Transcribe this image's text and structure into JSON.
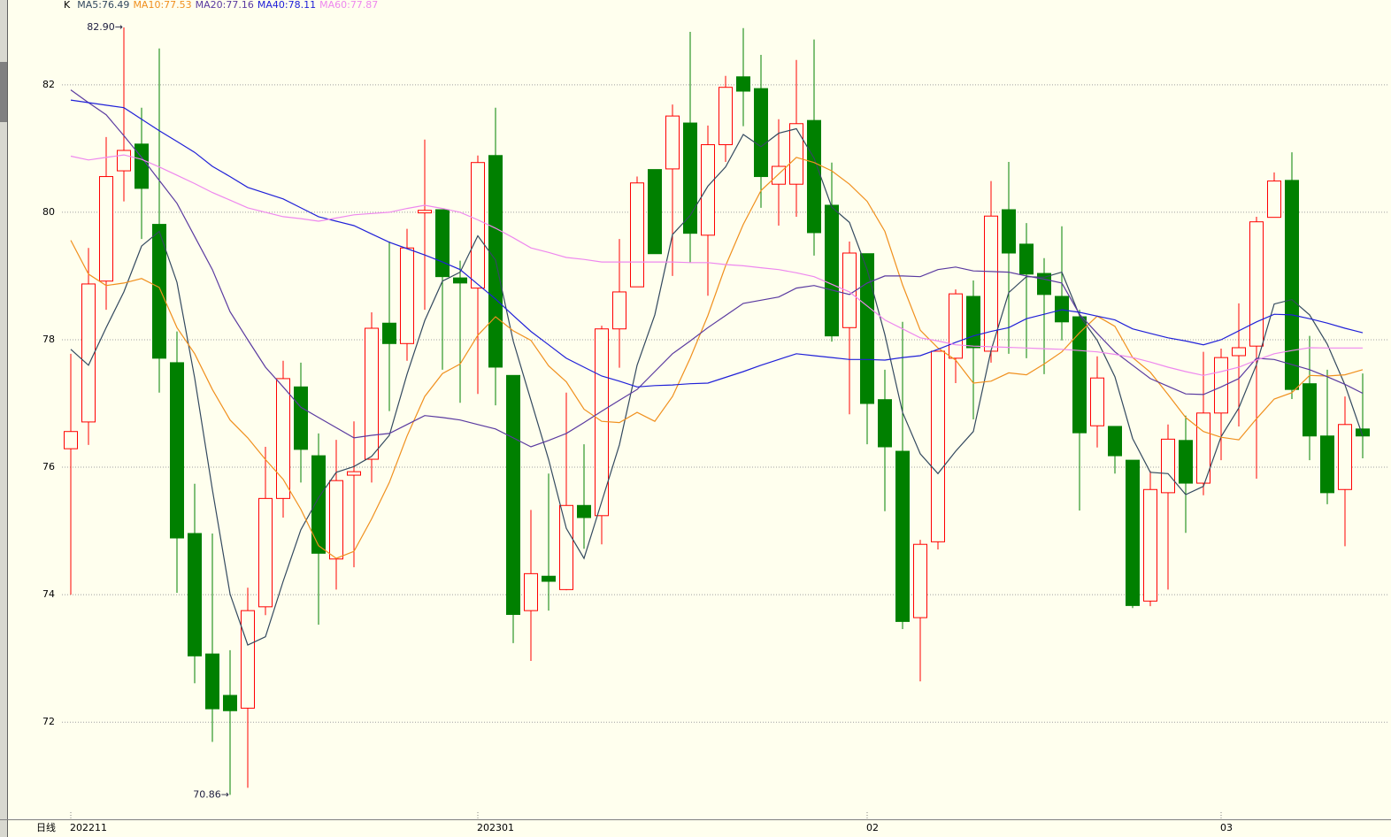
{
  "chart_data": {
    "type": "candlestick",
    "title": "K",
    "period": "日线",
    "categories": [
      "202211",
      null,
      null,
      null,
      null,
      null,
      null,
      null,
      null,
      null,
      null,
      null,
      null,
      null,
      null,
      null,
      null,
      null,
      null,
      null,
      null,
      null,
      null,
      "202301",
      null,
      null,
      null,
      null,
      null,
      null,
      null,
      null,
      null,
      null,
      null,
      null,
      null,
      null,
      null,
      null,
      null,
      null,
      null,
      null,
      null,
      "02",
      null,
      null,
      null,
      null,
      null,
      null,
      null,
      null,
      null,
      null,
      null,
      null,
      null,
      null,
      null,
      null,
      null,
      null,
      null,
      "03",
      null,
      null,
      null,
      null,
      null,
      null,
      null,
      null
    ],
    "open": [
      76.29,
      76.71,
      78.92,
      80.65,
      81.07,
      79.81,
      77.64,
      74.96,
      73.07,
      72.42,
      72.22,
      73.81,
      75.51,
      77.26,
      76.18,
      74.56,
      75.875,
      76.125,
      78.26,
      77.94,
      79.99,
      80.04,
      78.97,
      78.81,
      80.89,
      77.44,
      73.75,
      74.29,
      74.08,
      75.4,
      75.24,
      78.17,
      78.83,
      80.67,
      80.68,
      81.4,
      79.64,
      81.06,
      82.125,
      81.94,
      80.44,
      80.44,
      81.44,
      80.11,
      78.19,
      79.35,
      77.06,
      76.25,
      73.64,
      74.83,
      77.71,
      78.68,
      77.82,
      80.04,
      79.5,
      79.04,
      78.68,
      78.36,
      76.65,
      76.64,
      76.11,
      73.9,
      75.6,
      76.42,
      75.75,
      76.85,
      77.75,
      77.9,
      79.92,
      80.5,
      77.31,
      76.49,
      75.65,
      76.6
    ],
    "high": [
      77.78,
      79.44,
      81.18,
      82.9,
      81.64,
      82.57,
      78.13,
      75.74,
      74.96,
      73.13,
      74.11,
      76.32,
      77.67,
      77.64,
      76.53,
      76.43,
      76.72,
      78.43,
      79.54,
      79.74,
      81.14,
      80.04,
      79.24,
      80.89,
      81.64,
      77.44,
      75.33,
      75.9,
      77.17,
      76.36,
      78.22,
      79.58,
      80.56,
      80.67,
      81.69,
      82.83,
      81.36,
      82.14,
      82.89,
      82.47,
      81.46,
      82.39,
      82.71,
      80.78,
      79.54,
      79.35,
      77.53,
      78.28,
      74.86,
      77.82,
      78.79,
      78.93,
      80.49,
      80.79,
      79.83,
      79.28,
      79.78,
      78.47,
      77.74,
      76.64,
      76.11,
      75.94,
      76.67,
      76.81,
      77.81,
      77.86,
      78.57,
      79.93,
      80.625,
      80.94,
      78.06,
      77.53,
      77.11,
      77.47
    ],
    "low": [
      74.0,
      76.35,
      78.47,
      80.17,
      79.58,
      77.17,
      74.03,
      72.61,
      71.69,
      70.86,
      70.97,
      73.68,
      75.21,
      75.76,
      73.53,
      74.08,
      74.43,
      75.76,
      76.88,
      77.67,
      78.47,
      77.53,
      77.01,
      77.15,
      76.97,
      73.24,
      72.96,
      73.75,
      74.07,
      74.72,
      74.79,
      77.56,
      78.83,
      79.35,
      79.0,
      79.21,
      78.69,
      80.79,
      81.35,
      80.07,
      79.79,
      79.93,
      79.32,
      77.97,
      76.83,
      76.36,
      75.31,
      73.46,
      72.64,
      74.71,
      77.32,
      76.75,
      77.64,
      77.78,
      77.71,
      77.46,
      77.99,
      75.32,
      76.31,
      75.9,
      73.79,
      73.82,
      74.08,
      74.97,
      75.56,
      76.11,
      76.64,
      75.82,
      79.92,
      77.07,
      76.11,
      75.42,
      74.76,
      76.14
    ],
    "close": [
      76.56,
      78.875,
      80.56,
      80.97,
      80.375,
      77.71,
      74.89,
      73.04,
      72.21,
      72.18,
      73.75,
      75.51,
      77.39,
      76.28,
      74.65,
      75.79,
      75.93,
      78.18,
      77.94,
      79.44,
      80.03,
      78.99,
      78.89,
      80.78,
      77.57,
      73.69,
      74.33,
      74.21,
      75.4,
      75.21,
      78.17,
      78.75,
      80.46,
      79.35,
      81.51,
      79.67,
      81.06,
      81.96,
      81.9,
      80.56,
      80.72,
      81.39,
      79.68,
      78.06,
      79.36,
      77.0,
      76.32,
      73.58,
      74.79,
      77.82,
      78.72,
      77.875,
      79.94,
      79.36,
      79.03,
      78.71,
      78.28,
      76.54,
      77.4,
      76.18,
      73.83,
      75.65,
      76.44,
      75.75,
      76.85,
      77.72,
      77.875,
      79.85,
      80.49,
      77.22,
      76.49,
      75.6,
      76.67,
      76.49
    ],
    "up_color": "#ff0000",
    "down_color": "#008000",
    "series": [
      {
        "name": "MA5:76.49",
        "color": "#33495f",
        "values": [
          77.85,
          77.6,
          78.19,
          78.75,
          79.47,
          79.7,
          78.9,
          77.4,
          75.65,
          74.01,
          73.21,
          73.34,
          74.21,
          75.02,
          75.52,
          75.92,
          76.01,
          76.17,
          76.5,
          77.46,
          78.3,
          78.92,
          79.06,
          79.63,
          79.25,
          77.98,
          77.05,
          76.12,
          75.04,
          74.57,
          75.46,
          76.35,
          77.6,
          78.39,
          79.65,
          79.95,
          80.41,
          80.71,
          81.22,
          81.03,
          81.24,
          81.31,
          80.85,
          80.08,
          79.84,
          79.1,
          78.08,
          76.86,
          76.21,
          75.9,
          76.25,
          76.56,
          77.83,
          78.74,
          78.99,
          78.98,
          79.06,
          78.38,
          77.99,
          77.42,
          76.45,
          75.92,
          75.9,
          75.57,
          75.7,
          76.48,
          76.93,
          77.61,
          78.56,
          78.63,
          78.39,
          77.93,
          77.29,
          76.49
        ]
      },
      {
        "name": "MA10:77.53",
        "color": "#f0901e",
        "values": [
          79.56,
          79.03,
          78.85,
          78.89,
          78.96,
          78.82,
          78.19,
          77.78,
          77.22,
          76.74,
          76.46,
          76.12,
          75.81,
          75.34,
          74.77,
          74.57,
          74.68,
          75.19,
          75.76,
          76.49,
          77.11,
          77.47,
          77.62,
          78.07,
          78.36,
          78.14,
          77.99,
          77.59,
          77.34,
          76.91,
          76.72,
          76.7,
          76.86,
          76.72,
          77.11,
          77.71,
          78.38,
          79.16,
          79.81,
          80.34,
          80.6,
          80.86,
          80.78,
          80.65,
          80.44,
          80.17,
          79.7,
          78.86,
          78.15,
          77.87,
          77.68,
          77.32,
          77.35,
          77.48,
          77.45,
          77.62,
          77.81,
          78.11,
          78.37,
          78.21,
          77.72,
          77.49,
          77.14,
          76.78,
          76.56,
          76.47,
          76.43,
          76.76,
          77.07,
          77.17,
          77.44,
          77.43,
          77.45,
          77.53
        ]
      },
      {
        "name": "MA20:77.16",
        "color": "#5a3aa0",
        "values": [
          81.92,
          81.72,
          81.53,
          81.2,
          80.86,
          80.5,
          80.14,
          79.62,
          79.1,
          78.44,
          78.0,
          77.57,
          77.26,
          76.94,
          76.78,
          76.62,
          76.46,
          76.5,
          76.53,
          76.67,
          76.81,
          76.78,
          76.74,
          76.67,
          76.6,
          76.46,
          76.32,
          76.42,
          76.53,
          76.7,
          76.88,
          77.05,
          77.22,
          77.5,
          77.78,
          77.98,
          78.19,
          78.38,
          78.57,
          78.62,
          78.67,
          78.81,
          78.85,
          78.78,
          78.71,
          78.89,
          79.0,
          79.0,
          78.99,
          79.1,
          79.14,
          79.08,
          79.07,
          79.06,
          79.0,
          78.95,
          78.89,
          78.4,
          78.1,
          77.81,
          77.6,
          77.39,
          77.27,
          77.15,
          77.14,
          77.26,
          77.39,
          77.71,
          77.69,
          77.61,
          77.53,
          77.42,
          77.3,
          77.16
        ]
      },
      {
        "name": "MA40:78.11",
        "color": "#2020d8",
        "values": [
          81.76,
          81.72,
          81.68,
          81.64,
          81.46,
          81.28,
          81.11,
          80.94,
          80.72,
          80.56,
          80.39,
          80.3,
          80.21,
          80.07,
          79.93,
          79.86,
          79.79,
          79.66,
          79.53,
          79.43,
          79.33,
          79.22,
          79.1,
          78.87,
          78.64,
          78.38,
          78.13,
          77.92,
          77.71,
          77.57,
          77.43,
          77.35,
          77.26,
          77.28,
          77.29,
          77.31,
          77.32,
          77.41,
          77.5,
          77.6,
          77.69,
          77.78,
          77.75,
          77.72,
          77.69,
          77.69,
          77.68,
          77.72,
          77.75,
          77.85,
          77.96,
          78.06,
          78.13,
          78.19,
          78.33,
          78.4,
          78.47,
          78.43,
          78.37,
          78.31,
          78.17,
          78.1,
          78.03,
          77.98,
          77.92,
          78.0,
          78.14,
          78.28,
          78.4,
          78.39,
          78.33,
          78.26,
          78.18,
          78.11
        ]
      },
      {
        "name": "MA60:77.87",
        "color": "#ee88ee",
        "values": [
          80.88,
          80.82,
          80.86,
          80.9,
          80.83,
          80.71,
          80.58,
          80.45,
          80.31,
          80.19,
          80.07,
          80.0,
          79.93,
          79.9,
          79.86,
          79.91,
          79.96,
          79.98,
          80.0,
          80.06,
          80.11,
          80.06,
          80.0,
          79.88,
          79.75,
          79.6,
          79.44,
          79.37,
          79.29,
          79.26,
          79.22,
          79.22,
          79.22,
          79.22,
          79.22,
          79.21,
          79.21,
          79.18,
          79.16,
          79.13,
          79.1,
          79.05,
          78.99,
          78.87,
          78.75,
          78.53,
          78.31,
          78.17,
          78.03,
          77.98,
          77.92,
          77.9,
          77.89,
          77.88,
          77.87,
          77.86,
          77.85,
          77.83,
          77.81,
          77.77,
          77.72,
          77.65,
          77.57,
          77.5,
          77.44,
          77.5,
          77.57,
          77.68,
          77.78,
          77.83,
          77.875,
          77.87,
          77.87,
          77.87
        ]
      }
    ],
    "annotations": [
      {
        "label": "82.90→",
        "value": 82.9
      },
      {
        "label": "70.86→",
        "value": 70.86
      }
    ],
    "ylim": [
      70.49,
      83.33
    ],
    "yticks": [
      72,
      74,
      76,
      78,
      80,
      82
    ],
    "grid": true
  }
}
